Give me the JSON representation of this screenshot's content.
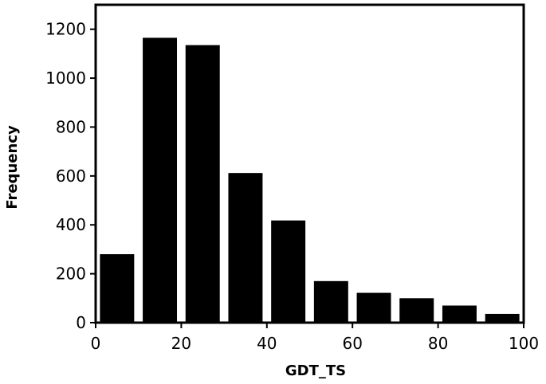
{
  "chart_data": {
    "type": "bar",
    "title": "",
    "xlabel": "GDT_TS",
    "ylabel": "Frequency",
    "xlim": [
      0,
      100
    ],
    "ylim": [
      0,
      1300
    ],
    "xticks": [
      0,
      20,
      40,
      60,
      80,
      100
    ],
    "yticks": [
      0,
      200,
      400,
      600,
      800,
      1000,
      1200
    ],
    "grid": false,
    "bar_color": "#000000",
    "bins": [
      {
        "start": 0,
        "end": 10,
        "value": 280
      },
      {
        "start": 10,
        "end": 20,
        "value": 1165
      },
      {
        "start": 20,
        "end": 30,
        "value": 1135
      },
      {
        "start": 30,
        "end": 40,
        "value": 612
      },
      {
        "start": 40,
        "end": 50,
        "value": 418
      },
      {
        "start": 50,
        "end": 60,
        "value": 170
      },
      {
        "start": 60,
        "end": 70,
        "value": 122
      },
      {
        "start": 70,
        "end": 80,
        "value": 100
      },
      {
        "start": 80,
        "end": 90,
        "value": 70
      },
      {
        "start": 90,
        "end": 100,
        "value": 36
      }
    ]
  }
}
